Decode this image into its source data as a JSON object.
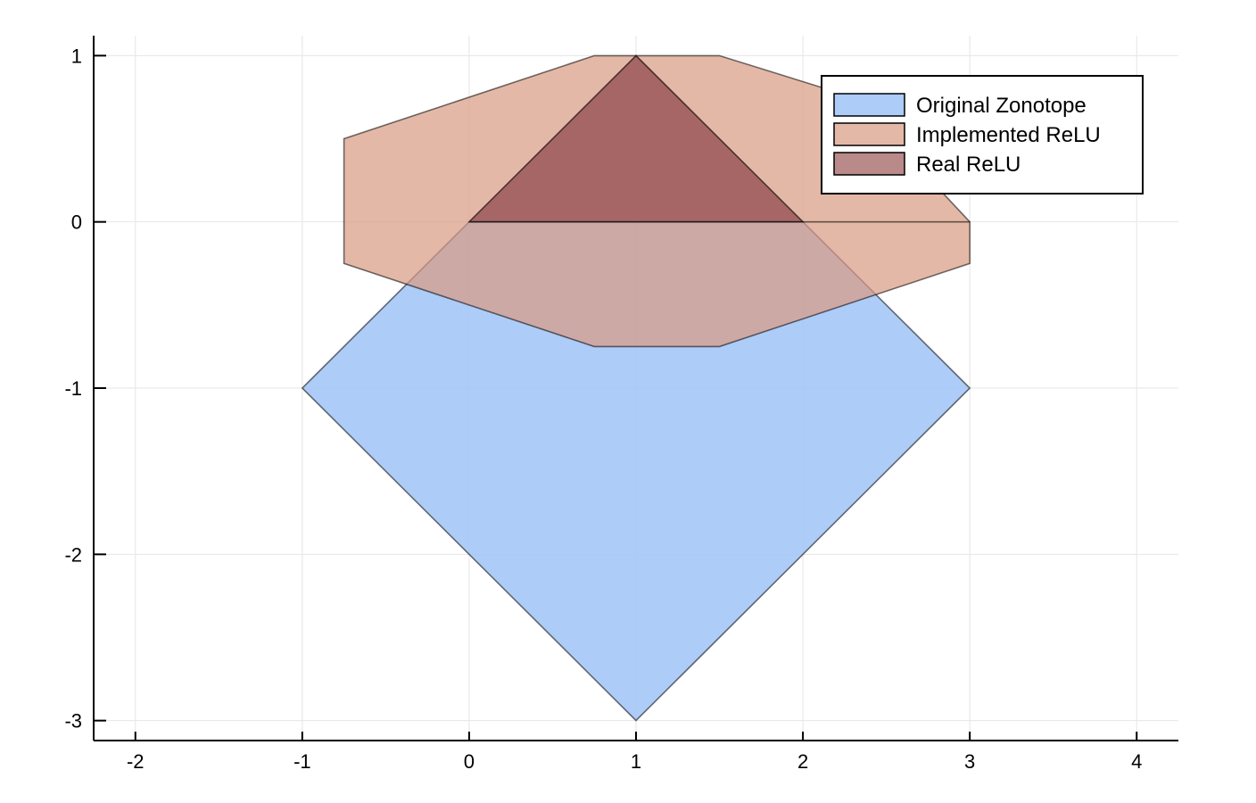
{
  "chart_data": {
    "type": "area",
    "title": "",
    "xlabel": "",
    "ylabel": "",
    "xlim": [
      -2.25,
      4.25
    ],
    "ylim": [
      -3.12,
      1.12
    ],
    "xticks": [
      -2,
      -1,
      0,
      1,
      2,
      3,
      4
    ],
    "yticks": [
      -3,
      -2,
      -1,
      0,
      1
    ],
    "xtick_labels": [
      "-2",
      "-1",
      "0",
      "1",
      "2",
      "3",
      "4"
    ],
    "ytick_labels": [
      "-3",
      "-2",
      "-1",
      "0",
      "1"
    ],
    "grid": true,
    "legend_position": "top-right",
    "series": [
      {
        "name": "Original Zonotope",
        "color": "#a4c6f7",
        "opacity": 0.9,
        "points": [
          [
            1,
            -3
          ],
          [
            3,
            -1
          ],
          [
            2,
            0
          ],
          [
            1,
            1
          ],
          [
            0,
            0
          ],
          [
            -1,
            -1
          ]
        ]
      },
      {
        "name": "Implemented ReLU",
        "color": "#d89a82",
        "opacity": 0.7,
        "points": [
          [
            0.75,
            -0.75
          ],
          [
            1.5,
            -0.75
          ],
          [
            3,
            -0.25
          ],
          [
            3,
            0
          ],
          [
            2.3,
            0.75
          ],
          [
            1.5,
            1
          ],
          [
            0.75,
            1
          ],
          [
            -0.75,
            0.5
          ],
          [
            -0.75,
            -0.25
          ]
        ]
      },
      {
        "name": "Real ReLU",
        "color": "#8c3a3a",
        "opacity": 0.6,
        "points": [
          [
            0,
            0
          ],
          [
            2,
            0
          ],
          [
            1,
            1
          ]
        ]
      }
    ],
    "annotations": [
      {
        "type": "segment",
        "from": [
          0,
          0
        ],
        "to": [
          3,
          0
        ]
      }
    ]
  }
}
